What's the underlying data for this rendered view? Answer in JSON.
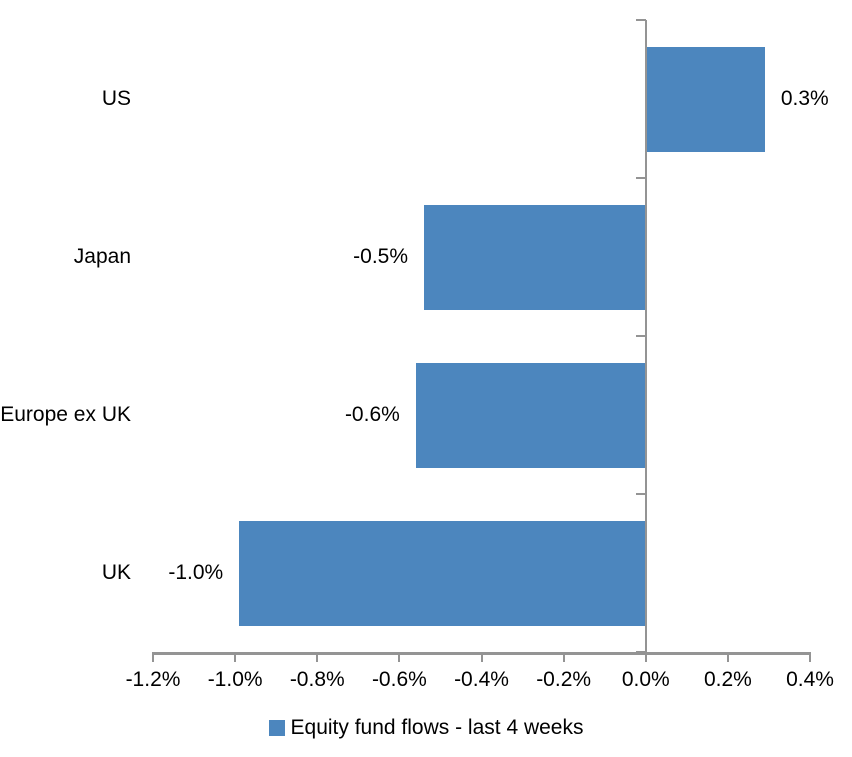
{
  "chart_data": {
    "type": "bar",
    "orientation": "horizontal",
    "title": "",
    "xlabel": "",
    "ylabel": "",
    "categories": [
      "US",
      "Japan",
      "Europe ex UK",
      "UK"
    ],
    "values": [
      0.3,
      -0.5,
      -0.6,
      -1.0
    ],
    "values_precise_pct": [
      0.29,
      -0.54,
      -0.56,
      -0.99
    ],
    "data_labels": [
      "0.3%",
      "-0.5%",
      "-0.6%",
      "-1.0%"
    ],
    "x_tick_labels": [
      "-1.2%",
      "-1.0%",
      "-0.8%",
      "-0.6%",
      "-0.4%",
      "-0.2%",
      "0.0%",
      "0.2%",
      "0.4%"
    ],
    "xlim": [
      -1.2,
      0.4
    ],
    "grid": false,
    "legend": "Equity fund flows - last 4 weeks",
    "legend_position": "bottom",
    "bar_color": "#4C86BE",
    "axis_color": "#949494",
    "text_color": "#000000",
    "background": "#FFFFFF"
  }
}
